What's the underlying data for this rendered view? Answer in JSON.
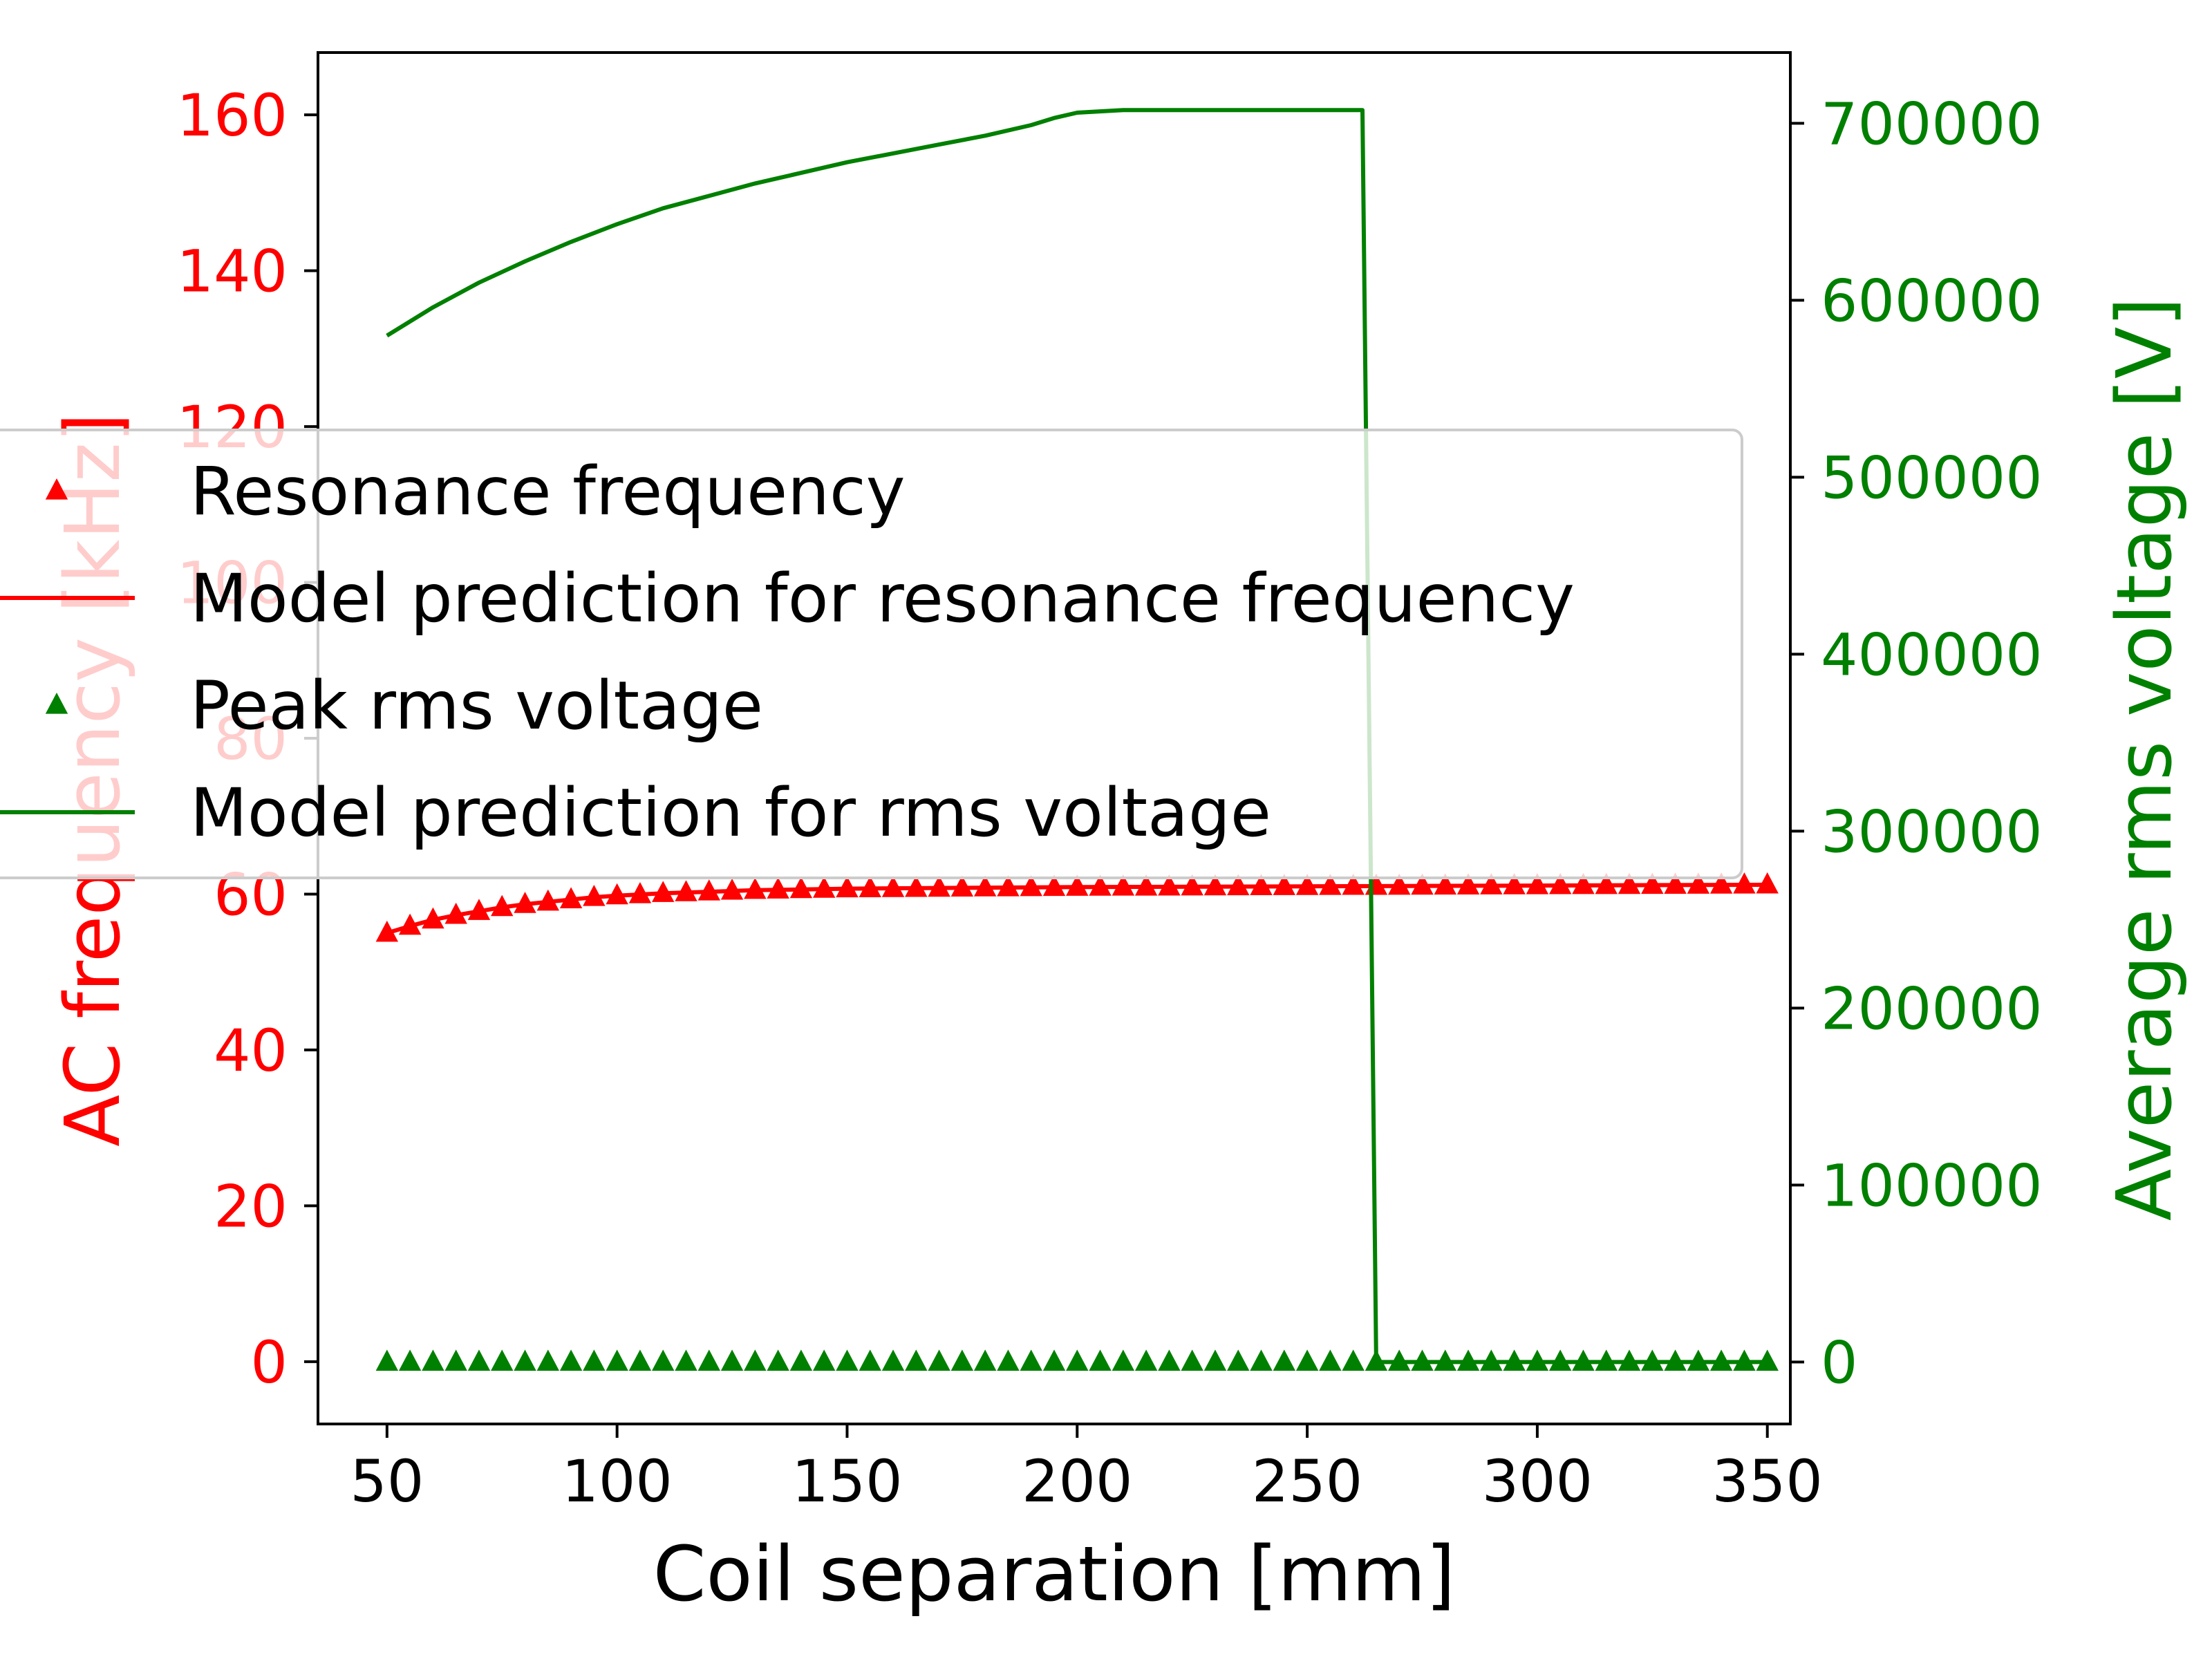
{
  "colors": {
    "frequency": "#ff0000",
    "voltage": "#008000",
    "axis": "#000000",
    "legend_bg": "#ffffff",
    "legend_border": "#cccccc"
  },
  "chart_data": {
    "type": "line",
    "xlabel": "Coil separation [mm]",
    "ylabel_left": "AC frequency [kHz]",
    "ylabel_right": "Average rms voltage [V]",
    "xlim": [
      35,
      355
    ],
    "ylim_left": [
      -8,
      168
    ],
    "ylim_right": [
      -35000,
      740000
    ],
    "x_ticks": [
      "50",
      "100",
      "150",
      "200",
      "250",
      "300",
      "350"
    ],
    "y_left_ticks": [
      "0",
      "20",
      "40",
      "60",
      "80",
      "100",
      "120",
      "140",
      "160"
    ],
    "y_right_ticks": [
      "0",
      "100000",
      "200000",
      "300000",
      "400000",
      "500000",
      "600000",
      "700000"
    ],
    "grid": false,
    "legend_position": "center-left",
    "series": [
      {
        "name": "Resonance frequency",
        "axis": "left",
        "style": "marker-triangle",
        "x_start": 50,
        "x_end": 350,
        "x_step": 5,
        "points": [
          [
            50,
            55.0
          ],
          [
            55,
            55.9
          ],
          [
            60,
            56.7
          ],
          [
            65,
            57.3
          ],
          [
            70,
            57.8
          ],
          [
            75,
            58.3
          ],
          [
            80,
            58.7
          ],
          [
            85,
            59.0
          ],
          [
            90,
            59.3
          ],
          [
            95,
            59.6
          ],
          [
            100,
            59.8
          ],
          [
            110,
            60.1
          ],
          [
            120,
            60.3
          ],
          [
            130,
            60.5
          ],
          [
            140,
            60.6
          ],
          [
            150,
            60.7
          ],
          [
            175,
            60.8
          ],
          [
            200,
            60.9
          ],
          [
            250,
            61.0
          ],
          [
            300,
            61.1
          ],
          [
            350,
            61.2
          ]
        ]
      },
      {
        "name": "Model prediction for resonance frequency",
        "axis": "left",
        "style": "line",
        "points": [
          [
            50,
            55.0
          ],
          [
            55,
            55.9
          ],
          [
            60,
            56.7
          ],
          [
            65,
            57.3
          ],
          [
            70,
            57.8
          ],
          [
            75,
            58.3
          ],
          [
            80,
            58.7
          ],
          [
            85,
            59.0
          ],
          [
            90,
            59.3
          ],
          [
            95,
            59.6
          ],
          [
            100,
            59.8
          ],
          [
            110,
            60.1
          ],
          [
            120,
            60.3
          ],
          [
            130,
            60.5
          ],
          [
            140,
            60.6
          ],
          [
            150,
            60.7
          ],
          [
            175,
            60.8
          ],
          [
            200,
            60.9
          ],
          [
            250,
            61.0
          ],
          [
            300,
            61.1
          ],
          [
            350,
            61.2
          ]
        ]
      },
      {
        "name": "Peak rms voltage",
        "axis": "right",
        "style": "marker-triangle",
        "x_start": 50,
        "x_end": 350,
        "x_step": 5,
        "points": [
          [
            50,
            0
          ],
          [
            350,
            0
          ]
        ]
      },
      {
        "name": "Model prediction for rms voltage",
        "axis": "right",
        "style": "line",
        "points": [
          [
            50,
            580000
          ],
          [
            60,
            596000
          ],
          [
            70,
            610000
          ],
          [
            80,
            622000
          ],
          [
            90,
            633000
          ],
          [
            100,
            643000
          ],
          [
            110,
            652000
          ],
          [
            120,
            659000
          ],
          [
            130,
            666000
          ],
          [
            140,
            672000
          ],
          [
            150,
            678000
          ],
          [
            160,
            683000
          ],
          [
            170,
            688000
          ],
          [
            180,
            693000
          ],
          [
            190,
            699000
          ],
          [
            195,
            703000
          ],
          [
            200,
            706000
          ],
          [
            210,
            707500
          ],
          [
            230,
            707500
          ],
          [
            262,
            707500
          ],
          [
            265,
            0
          ],
          [
            350,
            0
          ]
        ]
      }
    ]
  }
}
